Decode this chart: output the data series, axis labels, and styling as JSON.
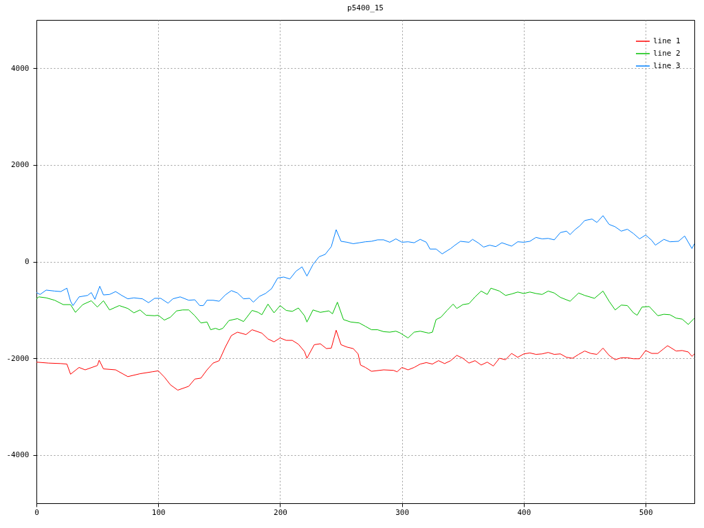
{
  "chart_data": {
    "type": "line",
    "title": "p5400_15",
    "xlim": [
      0,
      540
    ],
    "xticks": [
      0,
      100,
      200,
      300,
      400,
      500
    ],
    "ylim": [
      -5000,
      5000
    ],
    "yticks": [
      -4000,
      -2000,
      0,
      2000,
      4000
    ],
    "grid": true,
    "legend": "top right",
    "series": [
      {
        "name": "line 1",
        "color": "#ff0000",
        "x": [
          0,
          10,
          20,
          25,
          28,
          35,
          40,
          50,
          51.5,
          55,
          65,
          75,
          85,
          95,
          100,
          105,
          110,
          116,
          125,
          130,
          135,
          140,
          145,
          150,
          155,
          160,
          165,
          172,
          177,
          185,
          190,
          195,
          200,
          205,
          210,
          215,
          220,
          222,
          228,
          233,
          238,
          242,
          246,
          250,
          255,
          260,
          264,
          266,
          270,
          275,
          285,
          293,
          296,
          300,
          305,
          310,
          315,
          320,
          325,
          330,
          335,
          340,
          345,
          350,
          355,
          360,
          365,
          370,
          375,
          380,
          385,
          390,
          395,
          400,
          405,
          410,
          415,
          420,
          425,
          430,
          435,
          440,
          445,
          450,
          455,
          460,
          465,
          470,
          475,
          480,
          485,
          490,
          495,
          500,
          505,
          510,
          515,
          518,
          525,
          530,
          535,
          538,
          540
        ],
        "values": [
          -2080,
          -2100,
          -2110,
          -2120,
          -2330,
          -2190,
          -2240,
          -2150,
          -2040,
          -2220,
          -2240,
          -2380,
          -2320,
          -2280,
          -2260,
          -2390,
          -2550,
          -2660,
          -2580,
          -2430,
          -2410,
          -2240,
          -2100,
          -2050,
          -1770,
          -1530,
          -1460,
          -1510,
          -1410,
          -1480,
          -1600,
          -1660,
          -1580,
          -1630,
          -1630,
          -1710,
          -1860,
          -2000,
          -1720,
          -1700,
          -1800,
          -1790,
          -1420,
          -1720,
          -1770,
          -1800,
          -1910,
          -2140,
          -2190,
          -2270,
          -2240,
          -2250,
          -2280,
          -2190,
          -2240,
          -2190,
          -2120,
          -2090,
          -2120,
          -2050,
          -2110,
          -2050,
          -1940,
          -2000,
          -2100,
          -2050,
          -2140,
          -2080,
          -2160,
          -2000,
          -2030,
          -1900,
          -1980,
          -1910,
          -1890,
          -1920,
          -1910,
          -1880,
          -1920,
          -1910,
          -1980,
          -2000,
          -1920,
          -1850,
          -1900,
          -1920,
          -1790,
          -1940,
          -2030,
          -1990,
          -1990,
          -2010,
          -2010,
          -1840,
          -1900,
          -1900,
          -1800,
          -1740,
          -1850,
          -1840,
          -1870,
          -1960,
          -1910
        ]
      },
      {
        "name": "line 2",
        "color": "#00c000",
        "x": [
          0,
          2,
          8,
          15,
          22,
          28,
          32,
          38,
          45,
          50,
          55,
          60,
          68,
          75,
          80,
          85,
          90,
          97,
          100,
          105,
          110,
          115,
          120,
          125,
          130,
          135,
          140,
          143,
          147,
          150,
          153,
          158,
          165,
          170,
          177,
          182,
          185,
          190,
          195,
          200,
          205,
          210,
          215,
          220,
          222,
          227,
          233,
          240,
          243,
          247,
          252,
          258,
          265,
          270,
          275,
          280,
          285,
          290,
          295,
          298,
          305,
          310,
          315,
          322,
          325,
          328,
          332,
          337,
          342,
          345,
          350,
          355,
          360,
          365,
          370,
          373,
          380,
          385,
          390,
          395,
          400,
          405,
          410,
          415,
          420,
          425,
          430,
          438,
          445,
          450,
          458,
          465,
          470,
          475,
          480,
          485,
          490,
          493,
          497,
          503,
          510,
          515,
          520,
          525,
          530,
          535,
          540
        ],
        "values": [
          -770,
          -730,
          -750,
          -800,
          -890,
          -890,
          -1050,
          -890,
          -810,
          -940,
          -810,
          -1000,
          -910,
          -970,
          -1060,
          -1000,
          -1110,
          -1120,
          -1110,
          -1210,
          -1150,
          -1020,
          -1000,
          -1000,
          -1120,
          -1270,
          -1250,
          -1410,
          -1380,
          -1410,
          -1380,
          -1220,
          -1180,
          -1240,
          -1010,
          -1050,
          -1100,
          -880,
          -1060,
          -910,
          -1010,
          -1030,
          -960,
          -1120,
          -1250,
          -1000,
          -1050,
          -1020,
          -1080,
          -840,
          -1200,
          -1250,
          -1270,
          -1340,
          -1410,
          -1410,
          -1450,
          -1460,
          -1440,
          -1470,
          -1580,
          -1460,
          -1440,
          -1480,
          -1460,
          -1200,
          -1150,
          -1010,
          -880,
          -970,
          -890,
          -870,
          -730,
          -610,
          -680,
          -550,
          -610,
          -700,
          -670,
          -630,
          -660,
          -630,
          -660,
          -680,
          -610,
          -650,
          -740,
          -820,
          -650,
          -700,
          -760,
          -610,
          -820,
          -1000,
          -900,
          -910,
          -1060,
          -1110,
          -940,
          -930,
          -1120,
          -1090,
          -1100,
          -1170,
          -1190,
          -1300,
          -1170
        ]
      },
      {
        "name": "line 3",
        "color": "#0080ff",
        "x": [
          0,
          3,
          8,
          15,
          20,
          25,
          28,
          30,
          35,
          42,
          45,
          48,
          52,
          55,
          60,
          65,
          70,
          75,
          80,
          87,
          92,
          97,
          102,
          108,
          112,
          118,
          125,
          130,
          134,
          137,
          140,
          145,
          150,
          155,
          160,
          165,
          170,
          175,
          178,
          183,
          188,
          193,
          198,
          203,
          208,
          213,
          218,
          222,
          227,
          232,
          237,
          242,
          246,
          250,
          255,
          260,
          265,
          270,
          275,
          280,
          285,
          290,
          295,
          300,
          305,
          310,
          315,
          320,
          323,
          328,
          333,
          340,
          343,
          348,
          355,
          358,
          363,
          367,
          372,
          377,
          382,
          390,
          395,
          400,
          405,
          410,
          415,
          420,
          425,
          430,
          435,
          438,
          442,
          446,
          450,
          456,
          460,
          465,
          470,
          475,
          480,
          485,
          490,
          495,
          500,
          505,
          508,
          515,
          520,
          527,
          532,
          538,
          540
        ],
        "values": [
          -640,
          -680,
          -590,
          -610,
          -620,
          -550,
          -820,
          -910,
          -730,
          -700,
          -640,
          -780,
          -510,
          -690,
          -680,
          -620,
          -700,
          -770,
          -750,
          -770,
          -850,
          -760,
          -760,
          -860,
          -770,
          -730,
          -800,
          -790,
          -910,
          -910,
          -800,
          -800,
          -820,
          -690,
          -600,
          -650,
          -770,
          -760,
          -840,
          -720,
          -660,
          -560,
          -340,
          -320,
          -360,
          -200,
          -110,
          -300,
          -60,
          100,
          150,
          310,
          660,
          420,
          400,
          370,
          390,
          410,
          420,
          450,
          450,
          400,
          470,
          400,
          410,
          390,
          460,
          400,
          260,
          260,
          160,
          270,
          330,
          420,
          400,
          460,
          380,
          300,
          340,
          310,
          390,
          320,
          410,
          400,
          420,
          500,
          470,
          480,
          450,
          600,
          630,
          560,
          660,
          740,
          850,
          880,
          810,
          950,
          770,
          720,
          630,
          670,
          580,
          470,
          550,
          440,
          340,
          460,
          410,
          420,
          530,
          270,
          370
        ]
      }
    ]
  }
}
